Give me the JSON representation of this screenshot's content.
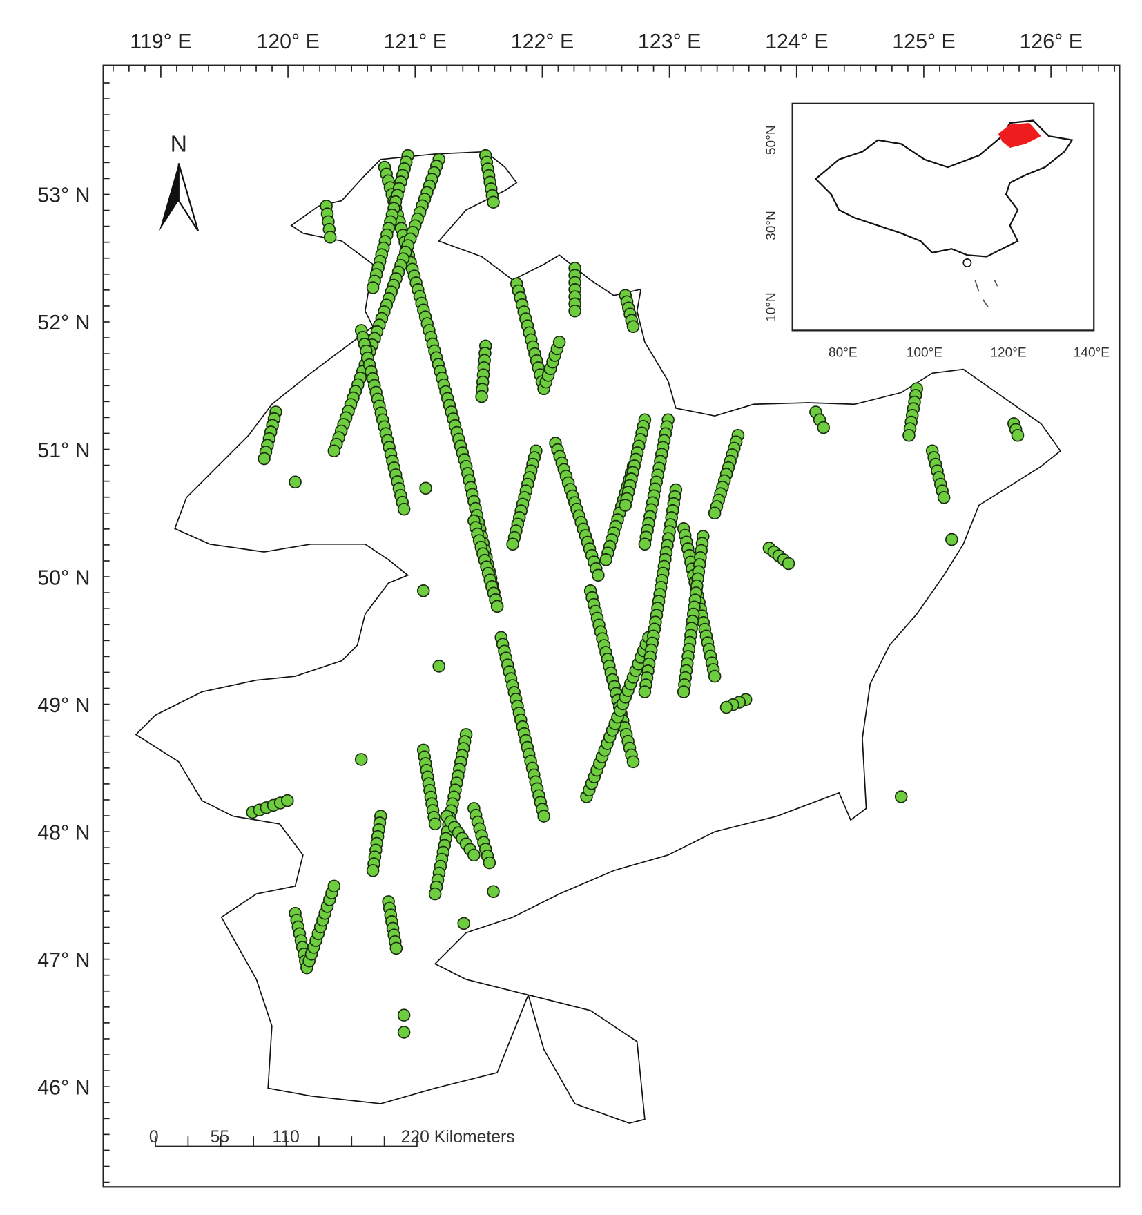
{
  "map": {
    "lon_labels": [
      "119° E",
      "120° E",
      "121° E",
      "122° E",
      "123° E",
      "124° E",
      "125° E",
      "126° E"
    ],
    "lat_labels": [
      "53° N",
      "52° N",
      "51° N",
      "50° N",
      "49° N",
      "48° N",
      "47° N",
      "46° N"
    ],
    "north_label": "N",
    "scale_bar": {
      "labels": [
        "0",
        "55",
        "110",
        "220 Kilometers"
      ]
    },
    "inset": {
      "lat_labels": [
        "50°N",
        "30°N",
        "10°N"
      ],
      "lon_labels": [
        "80°E",
        "100°E",
        "120°E",
        "140°E"
      ]
    }
  }
}
